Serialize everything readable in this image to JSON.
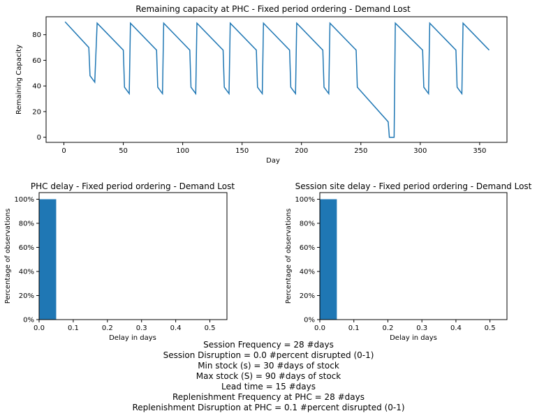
{
  "chart_data": [
    {
      "type": "line",
      "title": "Remaining capacity at PHC - Fixed period ordering - Demand Lost",
      "xlabel": "Day",
      "ylabel": "Remaining Capacity",
      "xlim": [
        -15,
        373
      ],
      "ylim": [
        -4,
        94
      ],
      "xticks": [
        0,
        50,
        100,
        150,
        200,
        250,
        300,
        350
      ],
      "yticks": [
        0,
        20,
        40,
        60,
        80
      ],
      "color": "#1f77b4",
      "series": [
        {
          "x": [
            1,
            21,
            22,
            26,
            28,
            50,
            51,
            55,
            56,
            78,
            79,
            83,
            84,
            106,
            107,
            111,
            112,
            134,
            135,
            139,
            140,
            162,
            163,
            167,
            168,
            190,
            191,
            195,
            196,
            218,
            219,
            223,
            224,
            246,
            247,
            273,
            274,
            278,
            279,
            302,
            303,
            307,
            308,
            330,
            331,
            335,
            336,
            358
          ],
          "y": [
            90,
            70,
            48,
            43,
            89,
            68,
            39,
            34,
            89,
            68,
            39,
            34,
            89,
            68,
            39,
            34,
            89,
            68,
            39,
            34,
            89,
            68,
            39,
            34,
            89,
            68,
            39,
            34,
            89,
            68,
            39,
            34,
            89,
            68,
            39,
            12,
            0,
            0,
            89,
            68,
            39,
            34,
            89,
            68,
            39,
            34,
            89,
            68
          ]
        }
      ]
    },
    {
      "type": "bar",
      "title": "PHC delay - Fixed period ordering - Demand Lost",
      "xlabel": "Delay in days",
      "ylabel": "Percentage of observations",
      "xlim": [
        0,
        0.55
      ],
      "ylim": [
        0,
        1.055
      ],
      "xticks": [
        "0.0",
        "0.1",
        "0.2",
        "0.3",
        "0.4",
        "0.5"
      ],
      "yticks": [
        "0%",
        "20%",
        "40%",
        "60%",
        "80%",
        "100%"
      ],
      "color": "#1f77b4",
      "bins": [
        {
          "start": 0.0,
          "end": 0.05,
          "value": 1.0
        }
      ]
    },
    {
      "type": "bar",
      "title": "Session site delay - Fixed period ordering - Demand Lost",
      "xlabel": "Delay in days",
      "ylabel": "Percentage of observations",
      "xlim": [
        0,
        0.55
      ],
      "ylim": [
        0,
        1.055
      ],
      "xticks": [
        "0.0",
        "0.1",
        "0.2",
        "0.3",
        "0.4",
        "0.5"
      ],
      "yticks": [
        "0%",
        "20%",
        "40%",
        "60%",
        "80%",
        "100%"
      ],
      "color": "#1f77b4",
      "bins": [
        {
          "start": 0.0,
          "end": 0.05,
          "value": 1.0
        }
      ]
    }
  ],
  "parameters": [
    "Session Frequency = 28 #days",
    "Session Disruption = 0.0 #percent disrupted (0-1)",
    "Min stock (s) = 30 #days of stock",
    "Max stock (S) = 90 #days of stock",
    "Lead time = 15 #days",
    "Replenishment Frequency at PHC = 28 #days",
    "Replenishment Disruption at PHC = 0.1 #percent disrupted (0-1)"
  ]
}
